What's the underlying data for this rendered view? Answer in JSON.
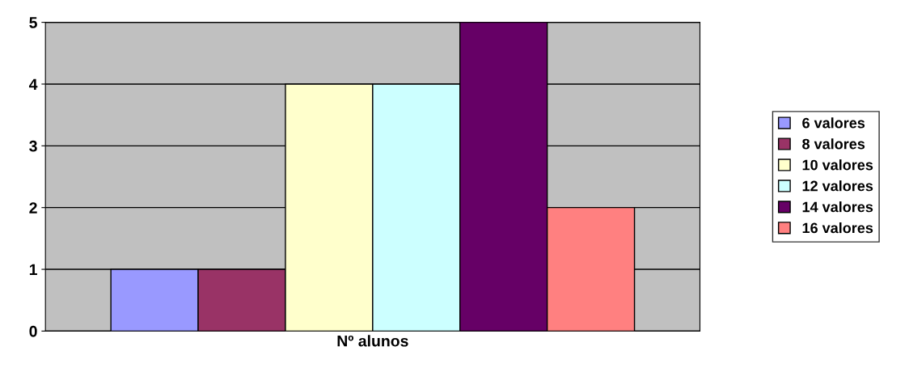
{
  "chart_data": {
    "type": "bar",
    "categories": [
      "Nº alunos"
    ],
    "series": [
      {
        "name": "6 valores",
        "color": "#9999ff",
        "values": [
          1
        ]
      },
      {
        "name": "8 valores",
        "color": "#993366",
        "values": [
          1
        ]
      },
      {
        "name": "10 valores",
        "color": "#ffffcc",
        "values": [
          4
        ]
      },
      {
        "name": "12 valores",
        "color": "#ccffff",
        "values": [
          4
        ]
      },
      {
        "name": "14 valores",
        "color": "#660066",
        "values": [
          5
        ]
      },
      {
        "name": "16 valores",
        "color": "#ff8080",
        "values": [
          2
        ]
      }
    ],
    "ylim": [
      0,
      5
    ],
    "yticks": [
      0,
      1,
      2,
      3,
      4,
      5
    ],
    "grid": "y",
    "legend": "right"
  }
}
